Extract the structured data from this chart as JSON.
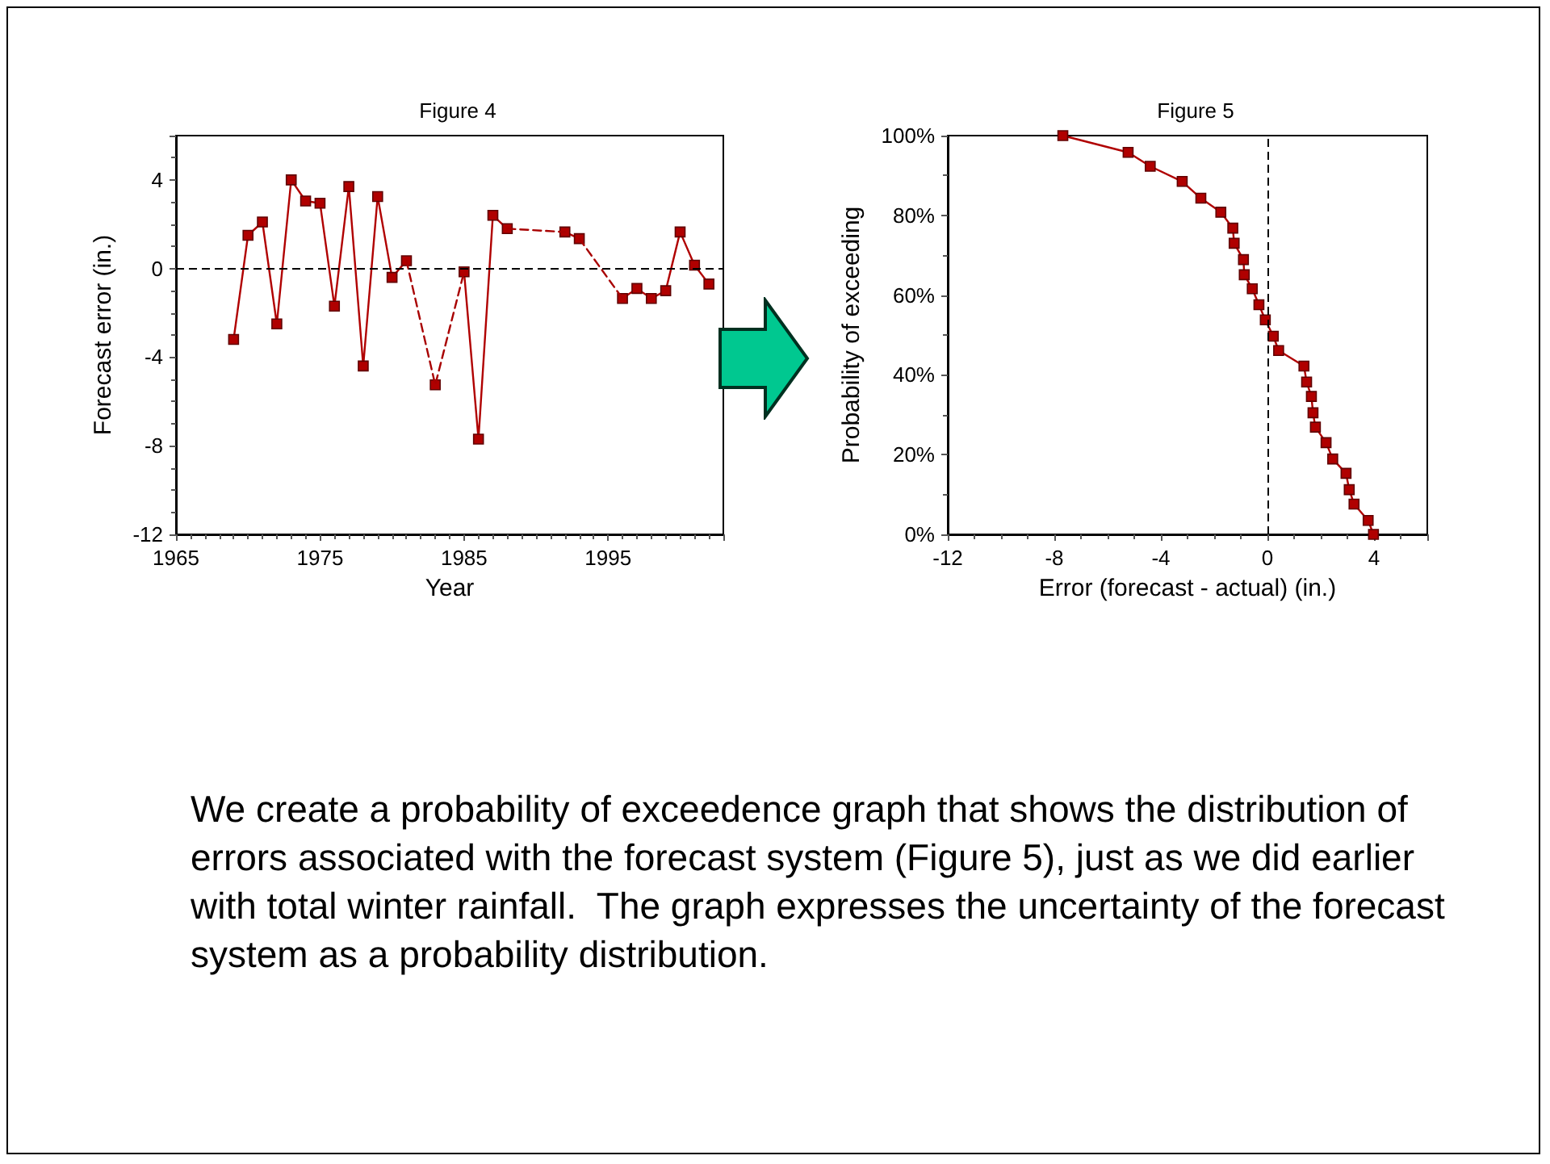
{
  "chart_data": [
    {
      "type": "line",
      "title": "Figure 4",
      "xlabel": "Year",
      "ylabel": "Forecast error (in.)",
      "xlim": [
        1965,
        2003
      ],
      "xticks": [
        1965,
        1975,
        1985,
        1995
      ],
      "ylim": [
        -12,
        6
      ],
      "yticks": [
        -12,
        -8,
        -4,
        0,
        4
      ],
      "marker": "square",
      "ref_lines": [
        {
          "axis": "y",
          "value": 0,
          "color": "#000000",
          "line_style": "dashed"
        }
      ],
      "series": [
        {
          "color": "#b00000",
          "line_style": "solid",
          "x": [
            1969,
            1970,
            1971,
            1972,
            1973,
            1974,
            1975,
            1976,
            1977,
            1978,
            1979,
            1980,
            1981,
            1982,
            1983,
            1984,
            1985,
            1986,
            1987,
            1988,
            1989,
            1990,
            1991,
            1992,
            1993,
            1994,
            1995,
            1996,
            1997,
            1998,
            1999,
            2000,
            2001,
            2002
          ],
          "values": [
            -3.2,
            1.5,
            2.1,
            -2.5,
            4.0,
            3.05,
            2.95,
            -1.7,
            3.7,
            -4.4,
            3.25,
            -0.4,
            0.35,
            null,
            -5.25,
            null,
            -0.15,
            -7.7,
            2.4,
            1.8,
            null,
            null,
            null,
            1.65,
            1.35,
            null,
            null,
            -1.35,
            -0.9,
            -1.35,
            -1.0,
            1.65,
            0.15,
            -0.7
          ]
        },
        {
          "color": "#a80000",
          "line_style": "dashed",
          "marker": "none",
          "x": [
            1981,
            1983,
            1985
          ],
          "values": [
            0.35,
            -5.25,
            -0.15
          ]
        },
        {
          "color": "#a80000",
          "line_style": "dashed",
          "marker": "none",
          "x": [
            1988,
            1992
          ],
          "values": [
            1.8,
            1.65
          ]
        },
        {
          "color": "#a80000",
          "line_style": "dashed",
          "marker": "none",
          "x": [
            1993,
            1996
          ],
          "values": [
            1.35,
            -1.35
          ]
        }
      ]
    },
    {
      "type": "line",
      "title": "Figure 5",
      "xlabel": "Error (forecast - actual) (in.)",
      "ylabel": "Probability of exceeding",
      "xlim": [
        -12,
        6
      ],
      "xticks": [
        -12,
        -8,
        -4,
        0,
        4
      ],
      "ylim": [
        0,
        100
      ],
      "yticks": [
        {
          "value": 0,
          "label": "0%"
        },
        {
          "value": 20,
          "label": "20%"
        },
        {
          "value": 40,
          "label": "40%"
        },
        {
          "value": 60,
          "label": "60%"
        },
        {
          "value": 80,
          "label": "80%"
        },
        {
          "value": 100,
          "label": "100%"
        }
      ],
      "marker": "square",
      "ref_lines": [
        {
          "axis": "x",
          "value": 0,
          "color": "#000000",
          "line_style": "dashed"
        }
      ],
      "series": [
        {
          "color": "#b00000",
          "line_style": "solid",
          "x": [
            -7.68,
            -5.23,
            -4.4,
            -3.2,
            -2.5,
            -1.75,
            -1.3,
            -1.25,
            -0.9,
            -0.87,
            -0.57,
            -0.32,
            -0.08,
            0.22,
            0.42,
            1.37,
            1.47,
            1.65,
            1.71,
            1.8,
            2.2,
            2.45,
            2.95,
            3.07,
            3.25,
            3.78,
            3.98
          ],
          "values": [
            100,
            95.8,
            92.3,
            88.5,
            84.3,
            80.8,
            76.8,
            73,
            68.9,
            65.1,
            61.6,
            57.6,
            53.8,
            49.7,
            46.1,
            42.2,
            38.2,
            34.6,
            30.5,
            26.9,
            23,
            18.9,
            15.3,
            11.2,
            7.6,
            3.5,
            0
          ]
        }
      ]
    },
    {
      "type": "other",
      "annotations": [
        "We create a probability of exceedence graph that shows the distribution of errors associated with the forecast system (Figure 5), just as we did earlier with total winter rainfall.  The graph expresses the uncertainty of the forecast system as a probability distribution."
      ]
    }
  ]
}
